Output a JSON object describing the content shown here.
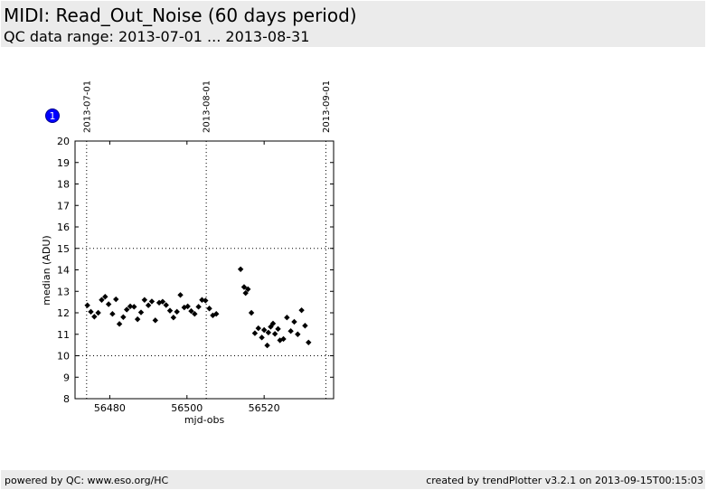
{
  "header": {
    "title": "MIDI: Read_Out_Noise (60 days period)",
    "subtitle": "QC data range: 2013-07-01 ... 2013-08-31"
  },
  "badge": {
    "label": "1",
    "color": "#0000ff"
  },
  "footer": {
    "left": "powered by QC: www.eso.org/HC",
    "right": "created by trendPlotter v3.2.1 on 2013-09-15T00:15:03"
  },
  "chart_data": {
    "type": "scatter",
    "xlabel": "mjd-obs",
    "ylabel": "median (ADU)",
    "xlim": [
      56471.0,
      56538.0
    ],
    "ylim": [
      8,
      20
    ],
    "x_ticks": [
      56480,
      56500,
      56520
    ],
    "y_ticks": [
      8,
      9,
      10,
      11,
      12,
      13,
      14,
      15,
      16,
      17,
      18,
      19,
      20
    ],
    "date_markers": [
      {
        "label": "2013-07-01",
        "x": 56474.0
      },
      {
        "label": "2013-08-01",
        "x": 56505.0
      },
      {
        "label": "2013-09-01",
        "x": 56536.0
      }
    ],
    "reference_lines_y": [
      10,
      15
    ],
    "marker_color": "#000000",
    "points": [
      {
        "x": 56474.2,
        "y": 12.35
      },
      {
        "x": 56475.1,
        "y": 12.05
      },
      {
        "x": 56476.0,
        "y": 11.82
      },
      {
        "x": 56477.0,
        "y": 12.0
      },
      {
        "x": 56477.9,
        "y": 12.6
      },
      {
        "x": 56478.8,
        "y": 12.75
      },
      {
        "x": 56479.7,
        "y": 12.4
      },
      {
        "x": 56480.7,
        "y": 11.95
      },
      {
        "x": 56481.6,
        "y": 12.63
      },
      {
        "x": 56482.5,
        "y": 11.48
      },
      {
        "x": 56483.5,
        "y": 11.8
      },
      {
        "x": 56484.4,
        "y": 12.15
      },
      {
        "x": 56485.3,
        "y": 12.3
      },
      {
        "x": 56486.3,
        "y": 12.28
      },
      {
        "x": 56487.2,
        "y": 11.7
      },
      {
        "x": 56488.1,
        "y": 12.02
      },
      {
        "x": 56489.0,
        "y": 12.6
      },
      {
        "x": 56490.0,
        "y": 12.35
      },
      {
        "x": 56490.9,
        "y": 12.53
      },
      {
        "x": 56491.8,
        "y": 11.65
      },
      {
        "x": 56492.8,
        "y": 12.47
      },
      {
        "x": 56493.7,
        "y": 12.52
      },
      {
        "x": 56494.6,
        "y": 12.36
      },
      {
        "x": 56495.6,
        "y": 12.1
      },
      {
        "x": 56496.5,
        "y": 11.78
      },
      {
        "x": 56497.4,
        "y": 12.05
      },
      {
        "x": 56498.3,
        "y": 12.83
      },
      {
        "x": 56499.3,
        "y": 12.25
      },
      {
        "x": 56500.2,
        "y": 12.3
      },
      {
        "x": 56501.1,
        "y": 12.08
      },
      {
        "x": 56502.0,
        "y": 11.95
      },
      {
        "x": 56503.0,
        "y": 12.28
      },
      {
        "x": 56503.9,
        "y": 12.6
      },
      {
        "x": 56504.8,
        "y": 12.57
      },
      {
        "x": 56505.8,
        "y": 12.2
      },
      {
        "x": 56506.7,
        "y": 11.88
      },
      {
        "x": 56507.6,
        "y": 11.95
      },
      {
        "x": 56513.9,
        "y": 14.03
      },
      {
        "x": 56514.8,
        "y": 13.2
      },
      {
        "x": 56515.2,
        "y": 12.92
      },
      {
        "x": 56515.8,
        "y": 13.1
      },
      {
        "x": 56516.7,
        "y": 12.0
      },
      {
        "x": 56517.6,
        "y": 11.05
      },
      {
        "x": 56518.5,
        "y": 11.28
      },
      {
        "x": 56519.4,
        "y": 10.85
      },
      {
        "x": 56520.0,
        "y": 11.2
      },
      {
        "x": 56520.8,
        "y": 10.48
      },
      {
        "x": 56521.1,
        "y": 11.08
      },
      {
        "x": 56521.7,
        "y": 11.35
      },
      {
        "x": 56522.3,
        "y": 11.5
      },
      {
        "x": 56522.8,
        "y": 11.02
      },
      {
        "x": 56523.6,
        "y": 11.25
      },
      {
        "x": 56524.1,
        "y": 10.72
      },
      {
        "x": 56525.0,
        "y": 10.78
      },
      {
        "x": 56525.9,
        "y": 11.78
      },
      {
        "x": 56526.9,
        "y": 11.15
      },
      {
        "x": 56527.8,
        "y": 11.58
      },
      {
        "x": 56528.7,
        "y": 11.0
      },
      {
        "x": 56529.7,
        "y": 12.12
      },
      {
        "x": 56530.6,
        "y": 11.4
      },
      {
        "x": 56531.5,
        "y": 10.62
      }
    ]
  }
}
